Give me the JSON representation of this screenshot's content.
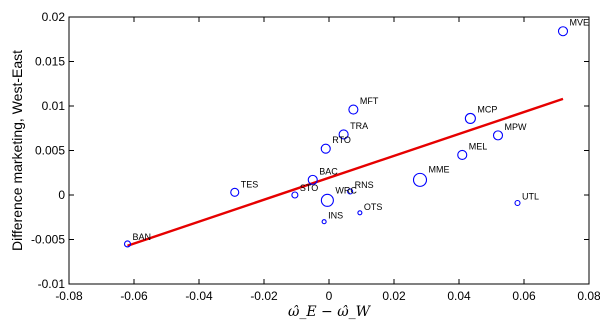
{
  "chart_data": {
    "type": "scatter",
    "title": "",
    "xlabel": "ω̂_E − ω̂_W",
    "ylabel": "Difference marketing, West-East",
    "xlim": [
      -0.08,
      0.08
    ],
    "ylim": [
      -0.01,
      0.02
    ],
    "xticks": [
      -0.08,
      -0.06,
      -0.04,
      -0.02,
      0,
      0.02,
      0.04,
      0.06,
      0.08
    ],
    "xtick_labels": [
      "-0.08",
      "-0.06",
      "-0.04",
      "-0.02",
      "0",
      "0.02",
      "0.04",
      "0.06",
      "0.08"
    ],
    "yticks": [
      -0.01,
      -0.005,
      0,
      0.005,
      0.01,
      0.015,
      0.02
    ],
    "ytick_labels": [
      "-0.01",
      "-0.005",
      "0",
      "0.005",
      "0.01",
      "0.015",
      "0.02"
    ],
    "grid": false,
    "points": [
      {
        "label": "MVE",
        "x": 0.072,
        "y": 0.0184,
        "size": 4.5
      },
      {
        "label": "MFT",
        "x": 0.0075,
        "y": 0.0096,
        "size": 4.5
      },
      {
        "label": "TRA",
        "x": 0.0045,
        "y": 0.0068,
        "size": 4.5
      },
      {
        "label": "RTO",
        "x": -0.001,
        "y": 0.0052,
        "size": 4.5
      },
      {
        "label": "MCP",
        "x": 0.0435,
        "y": 0.0086,
        "size": 5
      },
      {
        "label": "MPW",
        "x": 0.052,
        "y": 0.0067,
        "size": 4.5
      },
      {
        "label": "MEL",
        "x": 0.041,
        "y": 0.0045,
        "size": 4.5
      },
      {
        "label": "MME",
        "x": 0.028,
        "y": 0.0017,
        "size": 6.5
      },
      {
        "label": "TES",
        "x": -0.029,
        "y": 0.0003,
        "size": 4
      },
      {
        "label": "BAC",
        "x": -0.005,
        "y": 0.0017,
        "size": 4.5
      },
      {
        "label": "STO",
        "x": -0.0105,
        "y": 0.0,
        "size": 3
      },
      {
        "label": "RNS",
        "x": 0.0065,
        "y": 0.0004,
        "size": 2.5
      },
      {
        "label": "WRC",
        "x": -0.0005,
        "y": -0.0006,
        "size": 6
      },
      {
        "label": "OTS",
        "x": 0.0095,
        "y": -0.002,
        "size": 2
      },
      {
        "label": "INS",
        "x": -0.0015,
        "y": -0.003,
        "size": 2
      },
      {
        "label": "UTL",
        "x": 0.058,
        "y": -0.0009,
        "size": 2.5
      },
      {
        "label": "BAN",
        "x": -0.062,
        "y": -0.0055,
        "size": 3
      }
    ],
    "fit_line": {
      "x": [
        -0.062,
        0.072
      ],
      "y": [
        -0.0057,
        0.0108
      ],
      "color": "#e60000"
    },
    "marker_color": "#0000ff"
  }
}
